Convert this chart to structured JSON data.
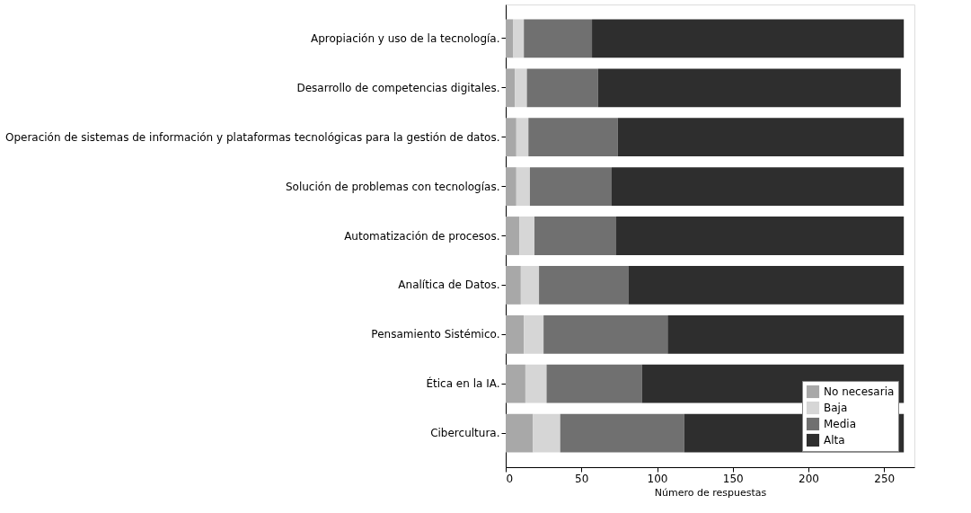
{
  "chart_data": {
    "type": "bar",
    "orientation": "horizontal",
    "stacked": true,
    "xlabel": "Número de respuestas",
    "categories": [
      "Apropiación y uso de la tecnología.",
      "Desarrollo de competencias digitales.",
      "Operación de sistemas de información y plataformas tecnológicas para la gestión de datos.",
      "Solución de problemas con tecnologías.",
      "Automatización de procesos.",
      "Analítica de Datos.",
      "Pensamiento Sistémico.",
      "Ética en la IA.",
      "Cibercultura."
    ],
    "series": [
      {
        "name": "No necesaria",
        "color": "#a8a8a8",
        "values": [
          5,
          6,
          7,
          7,
          9,
          10,
          12,
          13,
          18
        ]
      },
      {
        "name": "Baja",
        "color": "#d6d6d6",
        "values": [
          7,
          8,
          8,
          9,
          10,
          12,
          13,
          14,
          18
        ]
      },
      {
        "name": "Media",
        "color": "#707070",
        "values": [
          45,
          47,
          59,
          54,
          54,
          59,
          82,
          63,
          82
        ]
      },
      {
        "name": "Alta",
        "color": "#2e2e2e",
        "values": [
          206,
          200,
          189,
          193,
          190,
          182,
          156,
          173,
          145
        ]
      }
    ],
    "xlim": [
      0,
      270
    ],
    "xticks": [
      0,
      50,
      100,
      150,
      200,
      250
    ],
    "grid": false,
    "legend": "bottom right"
  }
}
